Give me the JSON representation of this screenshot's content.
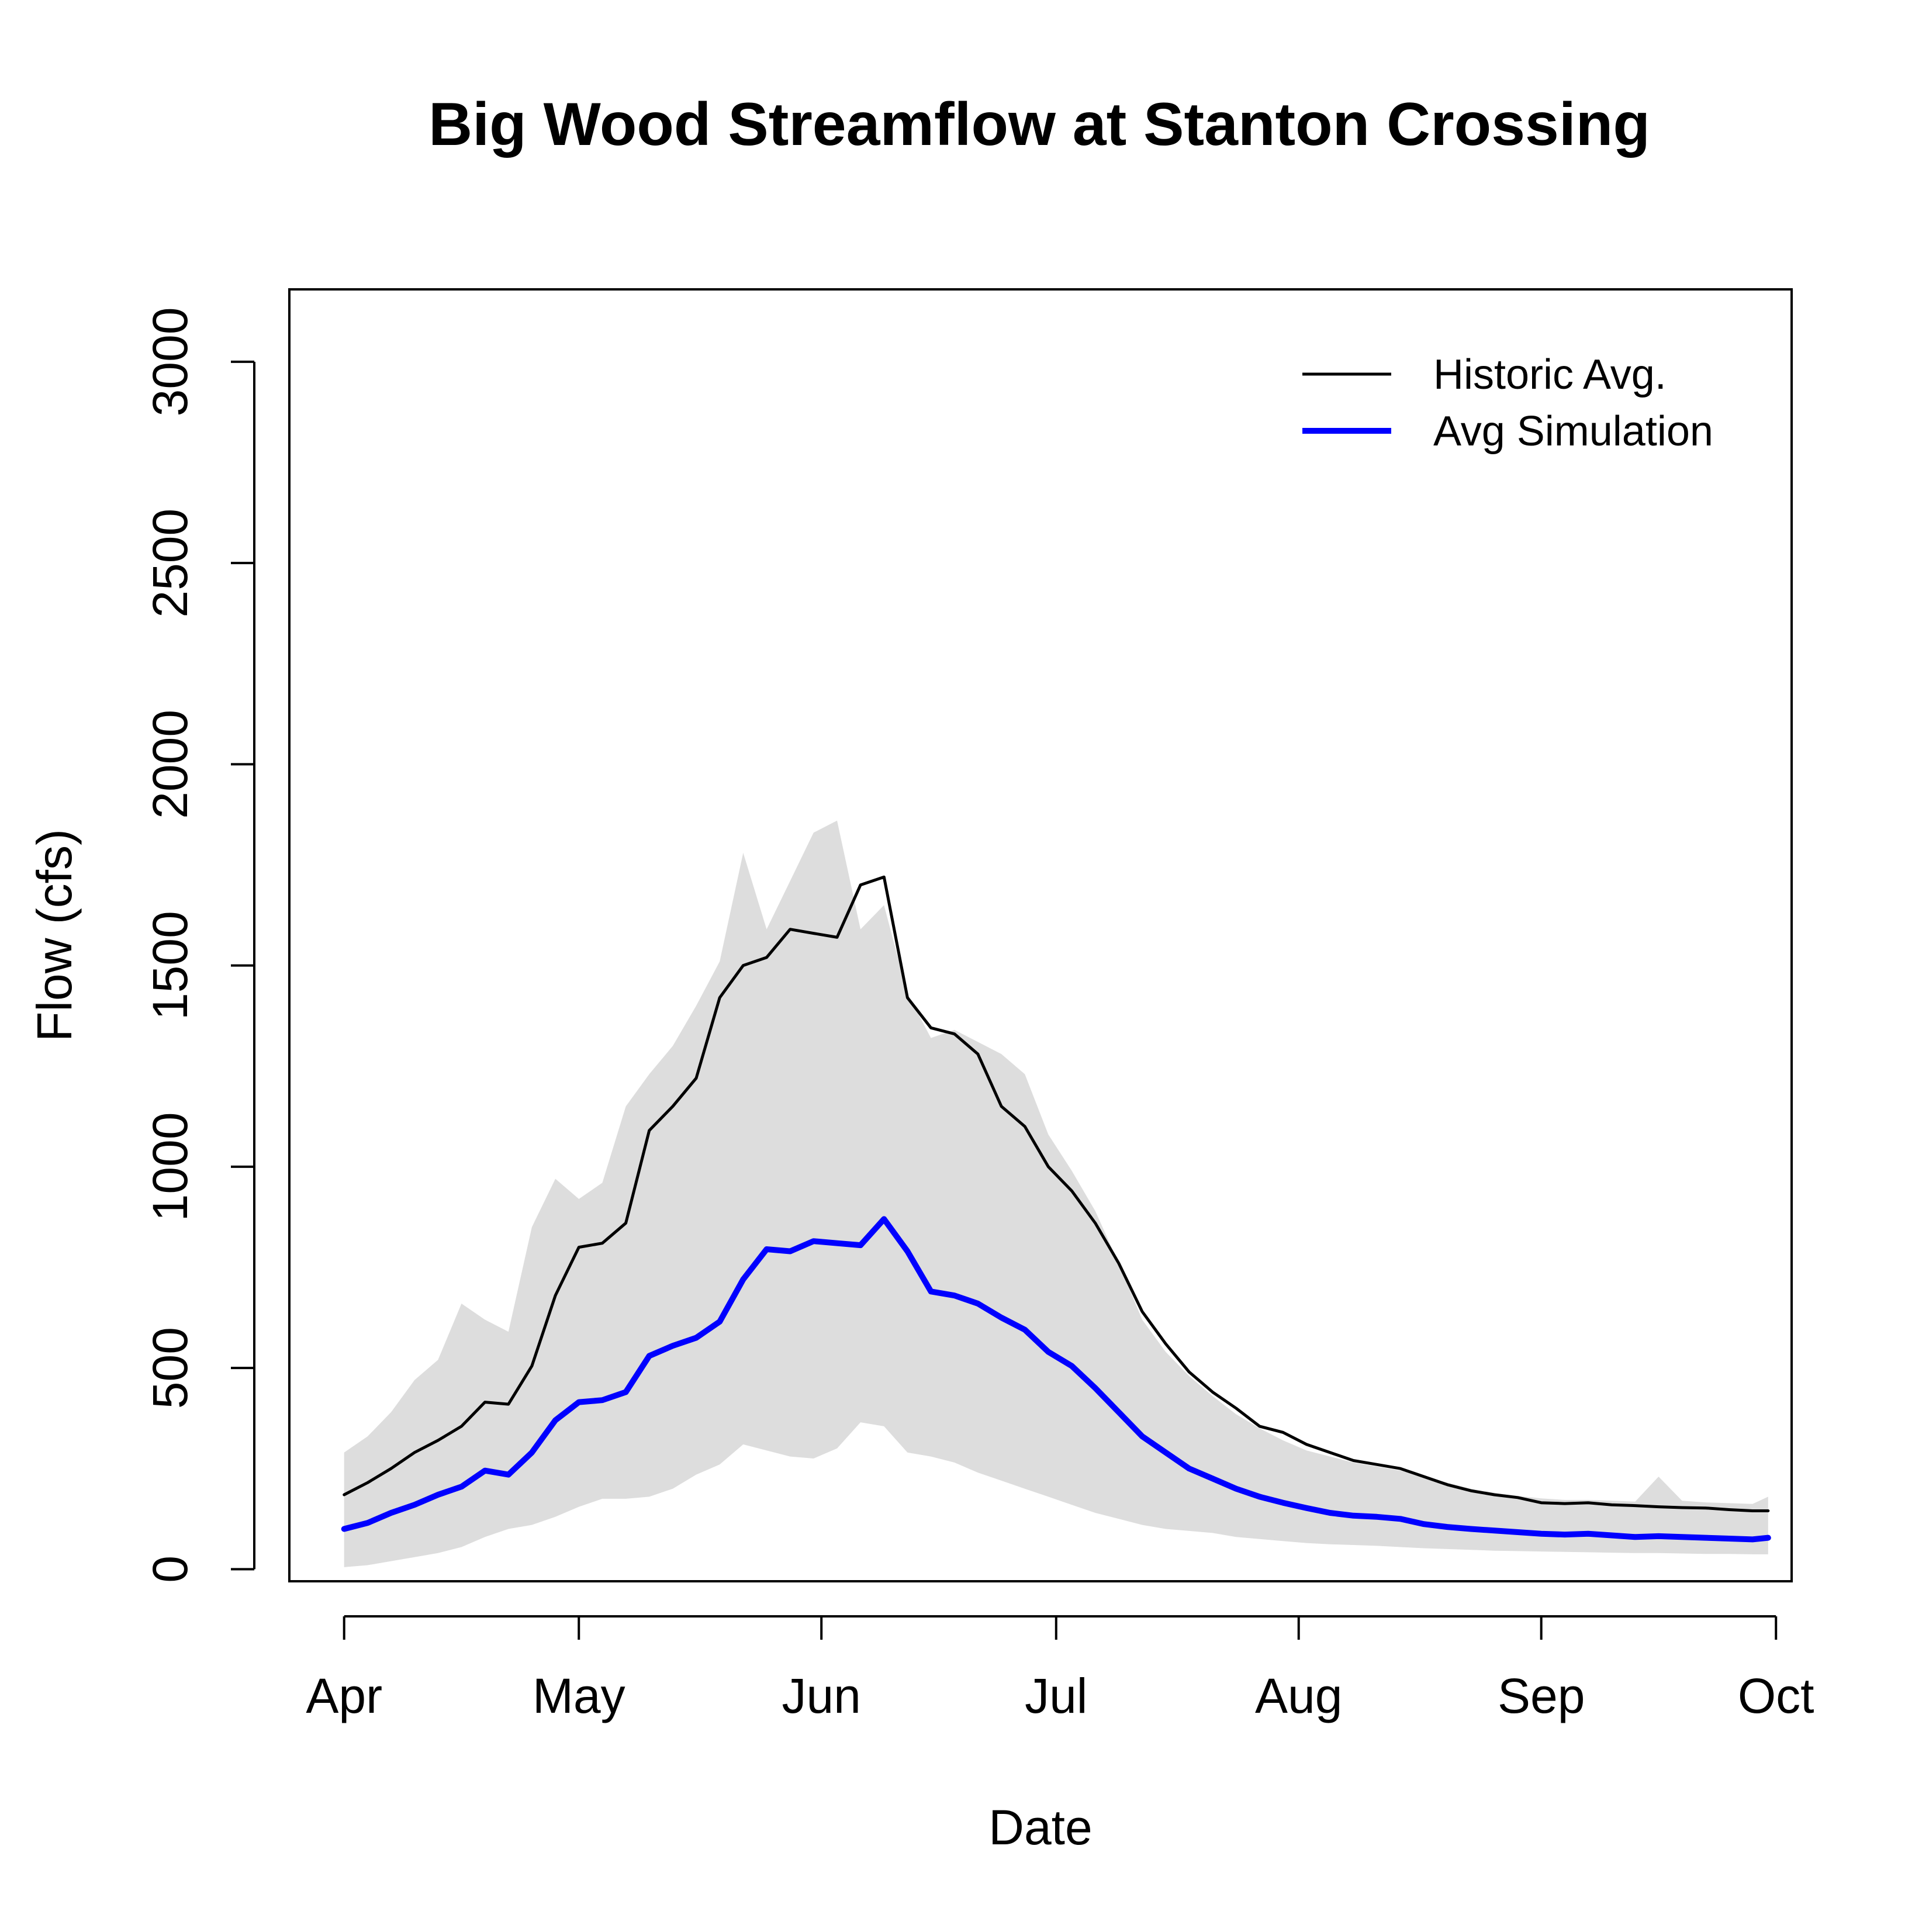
{
  "chart_data": {
    "type": "line",
    "title": "Big Wood Streamflow at Stanton Crossing",
    "xlabel": "Date",
    "ylabel": "Flow (cfs)",
    "xlim": [
      "2000-03-25",
      "2000-10-03"
    ],
    "ylim": [
      -30,
      3180
    ],
    "y_ticks": [
      0,
      500,
      1000,
      1500,
      2000,
      2500,
      3000
    ],
    "x_ticks": [
      {
        "date": "2000-04-01",
        "label": "Apr"
      },
      {
        "date": "2000-05-01",
        "label": "May"
      },
      {
        "date": "2000-06-01",
        "label": "Jun"
      },
      {
        "date": "2000-07-01",
        "label": "Jul"
      },
      {
        "date": "2000-08-01",
        "label": "Aug"
      },
      {
        "date": "2000-09-01",
        "label": "Sep"
      },
      {
        "date": "2000-10-01",
        "label": "Oct"
      }
    ],
    "grid": false,
    "legend_position": "top-right",
    "x": [
      "2000-04-01",
      "2000-04-04",
      "2000-04-07",
      "2000-04-10",
      "2000-04-13",
      "2000-04-16",
      "2000-04-19",
      "2000-04-22",
      "2000-04-25",
      "2000-04-28",
      "2000-05-01",
      "2000-05-04",
      "2000-05-07",
      "2000-05-10",
      "2000-05-13",
      "2000-05-16",
      "2000-05-19",
      "2000-05-22",
      "2000-05-25",
      "2000-05-28",
      "2000-05-31",
      "2000-06-03",
      "2000-06-06",
      "2000-06-09",
      "2000-06-12",
      "2000-06-15",
      "2000-06-18",
      "2000-06-21",
      "2000-06-24",
      "2000-06-27",
      "2000-06-30",
      "2000-07-03",
      "2000-07-06",
      "2000-07-09",
      "2000-07-12",
      "2000-07-15",
      "2000-07-18",
      "2000-07-21",
      "2000-07-24",
      "2000-07-27",
      "2000-07-30",
      "2000-08-02",
      "2000-08-05",
      "2000-08-08",
      "2000-08-11",
      "2000-08-14",
      "2000-08-17",
      "2000-08-20",
      "2000-08-23",
      "2000-08-26",
      "2000-08-29",
      "2000-09-01",
      "2000-09-04",
      "2000-09-07",
      "2000-09-10",
      "2000-09-13",
      "2000-09-16",
      "2000-09-19",
      "2000-09-22",
      "2000-09-25",
      "2000-09-28",
      "2000-09-30"
    ],
    "series": [
      {
        "name": "Historic Avg.",
        "color": "#000000",
        "values": [
          185,
          215,
          250,
          290,
          320,
          355,
          415,
          410,
          505,
          680,
          800,
          810,
          860,
          1090,
          1150,
          1220,
          1420,
          1500,
          1520,
          1590,
          1580,
          1570,
          1700,
          1720,
          1420,
          1345,
          1330,
          1280,
          1150,
          1100,
          1000,
          940,
          860,
          760,
          640,
          560,
          490,
          440,
          400,
          355,
          340,
          310,
          290,
          270,
          260,
          250,
          230,
          210,
          195,
          185,
          178,
          165,
          163,
          165,
          160,
          158,
          155,
          153,
          152,
          148,
          145,
          145
        ]
      },
      {
        "name": "Avg Simulation",
        "color": "#0000ff",
        "values": [
          100,
          115,
          140,
          160,
          185,
          205,
          245,
          235,
          290,
          370,
          415,
          420,
          440,
          530,
          555,
          575,
          615,
          720,
          795,
          790,
          815,
          810,
          805,
          870,
          790,
          690,
          680,
          660,
          625,
          595,
          540,
          505,
          450,
          390,
          330,
          290,
          250,
          225,
          200,
          180,
          165,
          152,
          140,
          133,
          130,
          125,
          112,
          105,
          100,
          96,
          92,
          88,
          86,
          88,
          84,
          80,
          82,
          80,
          78,
          76,
          74,
          78
        ]
      }
    ],
    "band": {
      "color": "#dddddd",
      "lower": [
        5,
        10,
        20,
        30,
        40,
        55,
        80,
        100,
        110,
        130,
        155,
        175,
        175,
        180,
        200,
        235,
        260,
        310,
        295,
        280,
        275,
        300,
        365,
        355,
        290,
        280,
        265,
        240,
        220,
        200,
        180,
        160,
        140,
        125,
        110,
        100,
        95,
        90,
        80,
        75,
        70,
        65,
        62,
        60,
        58,
        55,
        52,
        50,
        48,
        46,
        45,
        44,
        43,
        42,
        41,
        40,
        40,
        39,
        38,
        38,
        37,
        37
      ],
      "upper": [
        290,
        330,
        390,
        470,
        520,
        660,
        620,
        590,
        850,
        970,
        920,
        960,
        1150,
        1230,
        1300,
        1400,
        1510,
        1780,
        1590,
        1710,
        1830,
        1860,
        1590,
        1650,
        1430,
        1320,
        1340,
        1310,
        1280,
        1230,
        1080,
        990,
        890,
        760,
        620,
        540,
        480,
        430,
        385,
        350,
        320,
        295,
        280,
        265,
        255,
        245,
        230,
        215,
        200,
        190,
        182,
        176,
        172,
        172,
        170,
        168,
        230,
        170,
        166,
        164,
        162,
        180
      ]
    }
  }
}
